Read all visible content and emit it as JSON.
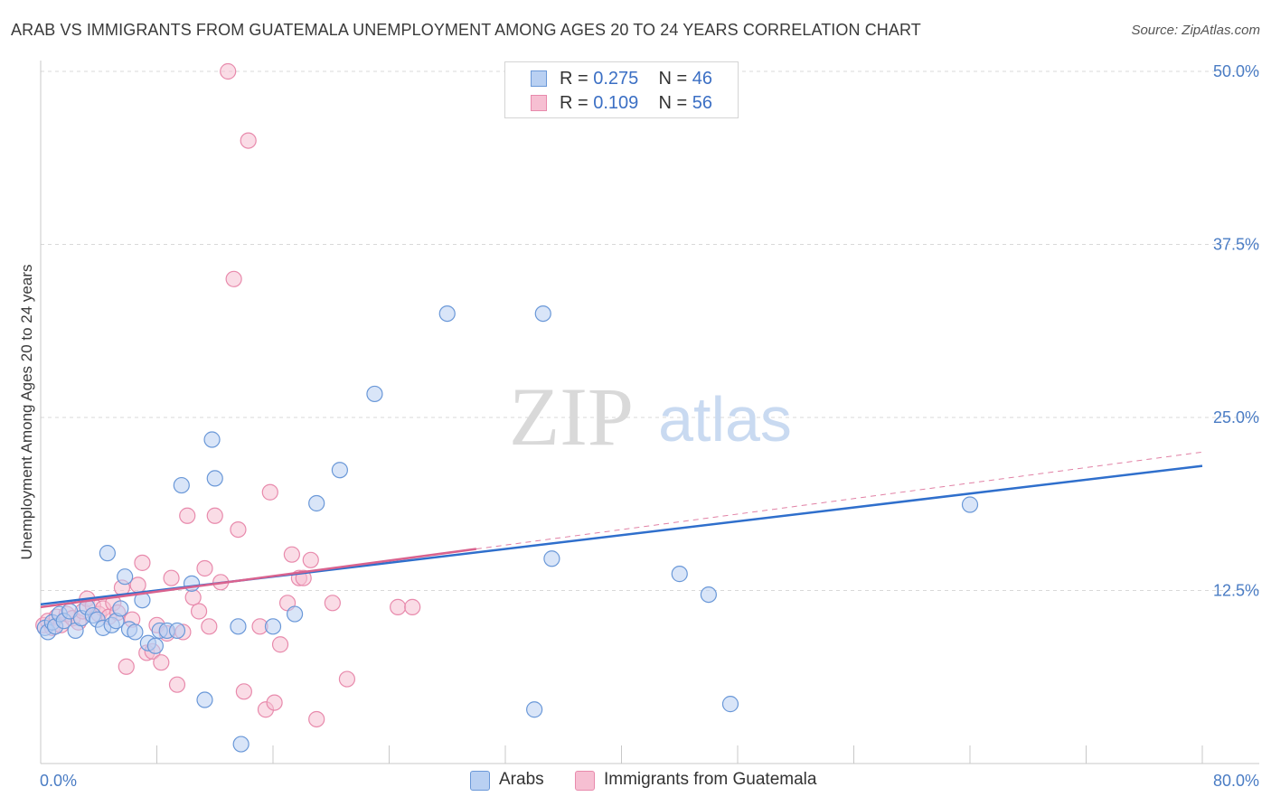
{
  "title": "ARAB VS IMMIGRANTS FROM GUATEMALA UNEMPLOYMENT AMONG AGES 20 TO 24 YEARS CORRELATION CHART",
  "source": "Source: ZipAtlas.com",
  "watermark": {
    "zip": "ZIP",
    "atlas": "atlas"
  },
  "colors": {
    "arabs_fill": "#b9d0f2",
    "arabs_stroke": "#6a98d8",
    "arabs_line": "#2f6fcc",
    "guat_fill": "#f6bfd2",
    "guat_stroke": "#e88aac",
    "guat_line": "#d9628e",
    "tick_text": "#4a7cc4",
    "grid": "#d9d9d9"
  },
  "legend": {
    "arabs": {
      "r_label": "R =",
      "r_value": "0.275",
      "n_label": "N =",
      "n_value": "46"
    },
    "guat": {
      "r_label": "R =",
      "r_value": "0.109",
      "n_label": "N =",
      "n_value": "56"
    }
  },
  "bottom_legend": {
    "arabs": "Arabs",
    "guat": "Immigrants from Guatemala"
  },
  "chart_data": {
    "type": "scatter",
    "xlabel": "",
    "ylabel": "Unemployment Among Ages 20 to 24 years",
    "xlim": [
      0,
      80
    ],
    "ylim": [
      0,
      50
    ],
    "x_tick_labels": [
      "0.0%",
      "80.0%"
    ],
    "y_ticks": [
      12.5,
      25.0,
      37.5,
      50.0
    ],
    "y_tick_labels": [
      "12.5%",
      "25.0%",
      "37.5%",
      "50.0%"
    ],
    "grid": true,
    "legend_position": "top-center",
    "series": [
      {
        "name": "Arabs",
        "r": 0.275,
        "n": 46,
        "points": [
          [
            0.3,
            9.8
          ],
          [
            0.5,
            9.5
          ],
          [
            0.8,
            10.2
          ],
          [
            1.0,
            9.9
          ],
          [
            1.3,
            10.8
          ],
          [
            1.6,
            10.3
          ],
          [
            2.0,
            11.0
          ],
          [
            2.4,
            9.6
          ],
          [
            2.8,
            10.5
          ],
          [
            3.2,
            11.3
          ],
          [
            3.6,
            10.7
          ],
          [
            3.9,
            10.4
          ],
          [
            4.3,
            9.8
          ],
          [
            4.6,
            15.2
          ],
          [
            4.9,
            10.0
          ],
          [
            5.2,
            10.3
          ],
          [
            5.5,
            11.2
          ],
          [
            5.8,
            13.5
          ],
          [
            6.1,
            9.7
          ],
          [
            6.5,
            9.5
          ],
          [
            7.0,
            11.8
          ],
          [
            7.4,
            8.7
          ],
          [
            7.9,
            8.5
          ],
          [
            8.2,
            9.6
          ],
          [
            8.7,
            9.6
          ],
          [
            9.4,
            9.6
          ],
          [
            9.7,
            20.1
          ],
          [
            10.4,
            13.0
          ],
          [
            11.3,
            4.6
          ],
          [
            11.8,
            23.4
          ],
          [
            12.0,
            20.6
          ],
          [
            13.6,
            9.9
          ],
          [
            13.8,
            1.4
          ],
          [
            16.0,
            9.9
          ],
          [
            17.5,
            10.8
          ],
          [
            19.0,
            18.8
          ],
          [
            20.6,
            21.2
          ],
          [
            23.0,
            26.7
          ],
          [
            28.0,
            32.5
          ],
          [
            34.0,
            3.9
          ],
          [
            34.6,
            32.5
          ],
          [
            35.2,
            14.8
          ],
          [
            44.0,
            13.7
          ],
          [
            46.0,
            12.2
          ],
          [
            47.5,
            4.3
          ],
          [
            64.0,
            18.7
          ]
        ],
        "trend": {
          "x0": 0,
          "y0": 11.5,
          "x1": 80,
          "y1": 21.5
        }
      },
      {
        "name": "Immigrants from Guatemala",
        "r": 0.109,
        "n": 56,
        "points": [
          [
            0.2,
            10.0
          ],
          [
            0.5,
            10.3
          ],
          [
            0.8,
            9.8
          ],
          [
            1.1,
            10.6
          ],
          [
            1.4,
            10.0
          ],
          [
            1.8,
            10.8
          ],
          [
            2.2,
            10.5
          ],
          [
            2.6,
            10.2
          ],
          [
            2.9,
            11.0
          ],
          [
            3.2,
            11.9
          ],
          [
            3.6,
            11.4
          ],
          [
            4.0,
            10.8
          ],
          [
            4.3,
            11.2
          ],
          [
            4.7,
            10.6
          ],
          [
            5.0,
            11.6
          ],
          [
            5.3,
            10.9
          ],
          [
            5.6,
            12.7
          ],
          [
            5.9,
            7.0
          ],
          [
            6.3,
            10.4
          ],
          [
            6.7,
            12.9
          ],
          [
            7.0,
            14.5
          ],
          [
            7.3,
            8.0
          ],
          [
            7.7,
            8.1
          ],
          [
            8.0,
            10.0
          ],
          [
            8.3,
            7.3
          ],
          [
            8.7,
            9.4
          ],
          [
            9.0,
            13.4
          ],
          [
            9.4,
            5.7
          ],
          [
            9.8,
            9.5
          ],
          [
            10.1,
            17.9
          ],
          [
            10.5,
            12.0
          ],
          [
            10.9,
            11.0
          ],
          [
            11.3,
            14.1
          ],
          [
            11.6,
            9.9
          ],
          [
            12.0,
            17.9
          ],
          [
            12.4,
            13.1
          ],
          [
            12.9,
            50.0
          ],
          [
            13.3,
            35.0
          ],
          [
            13.6,
            16.9
          ],
          [
            14.0,
            5.2
          ],
          [
            14.3,
            45.0
          ],
          [
            15.1,
            9.9
          ],
          [
            15.5,
            3.9
          ],
          [
            15.8,
            19.6
          ],
          [
            16.1,
            4.4
          ],
          [
            16.5,
            8.6
          ],
          [
            17.0,
            11.6
          ],
          [
            17.3,
            15.1
          ],
          [
            17.8,
            13.4
          ],
          [
            18.1,
            13.4
          ],
          [
            18.6,
            14.7
          ],
          [
            19.0,
            3.2
          ],
          [
            20.1,
            11.6
          ],
          [
            21.1,
            6.1
          ],
          [
            24.6,
            11.3
          ],
          [
            25.6,
            11.3
          ]
        ],
        "trend": {
          "x0": 0,
          "y0": 11.3,
          "x1": 30,
          "y1": 15.5
        },
        "trend_extension": {
          "x0": 30,
          "y0": 15.5,
          "x1": 80,
          "y1": 22.5
        }
      }
    ]
  }
}
